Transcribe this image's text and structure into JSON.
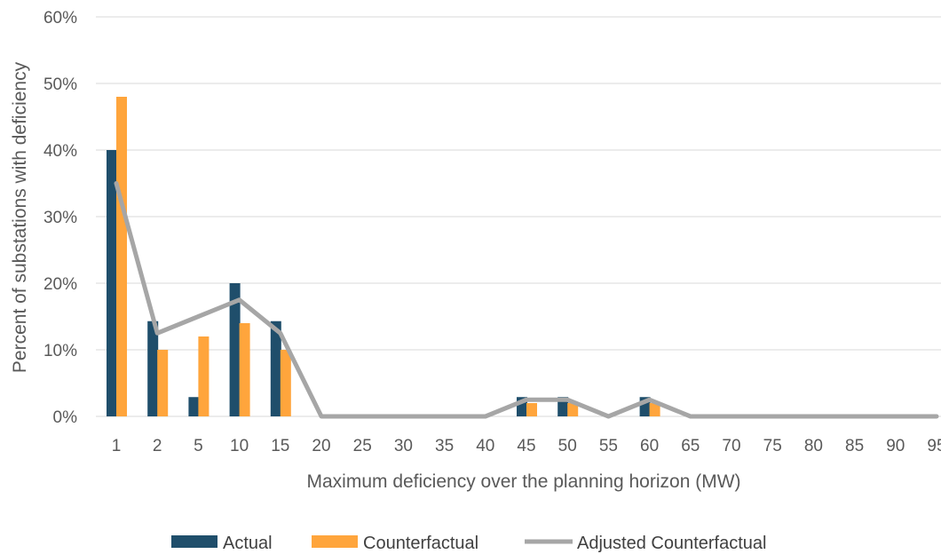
{
  "chart_data": {
    "type": "bar",
    "title": "",
    "xlabel": "Maximum deficiency over the planning horizon (MW)",
    "ylabel": "Percent of substations with deficiency",
    "ylim": [
      0,
      60
    ],
    "yticks": [
      "0%",
      "10%",
      "20%",
      "30%",
      "40%",
      "50%",
      "60%"
    ],
    "grid": true,
    "legend_position": "bottom",
    "categories": [
      "1",
      "2",
      "5",
      "10",
      "15",
      "20",
      "25",
      "30",
      "35",
      "40",
      "45",
      "50",
      "55",
      "60",
      "65",
      "70",
      "75",
      "80",
      "85",
      "90",
      "95"
    ],
    "series": [
      {
        "name": "Actual",
        "kind": "bar",
        "color": "#1f4e6b",
        "values": [
          40,
          14.3,
          2.9,
          20,
          14.3,
          0,
          0,
          0,
          0,
          0,
          2.9,
          2.9,
          0,
          2.9,
          0,
          0,
          0,
          0,
          0,
          0,
          0
        ]
      },
      {
        "name": "Counterfactual",
        "kind": "bar",
        "color": "#ffa53c",
        "values": [
          48,
          10,
          12,
          14,
          10,
          0,
          0,
          0,
          0,
          0,
          2,
          2,
          0,
          2,
          0,
          0,
          0,
          0,
          0,
          0,
          0
        ]
      },
      {
        "name": "Adjusted Counterfactual",
        "kind": "line",
        "color": "#a6a6a6",
        "values": [
          35,
          12.5,
          15,
          17.5,
          12.5,
          0,
          0,
          0,
          0,
          0,
          2.5,
          2.5,
          0,
          2.5,
          0,
          0,
          0,
          0,
          0,
          0,
          0
        ]
      }
    ]
  }
}
